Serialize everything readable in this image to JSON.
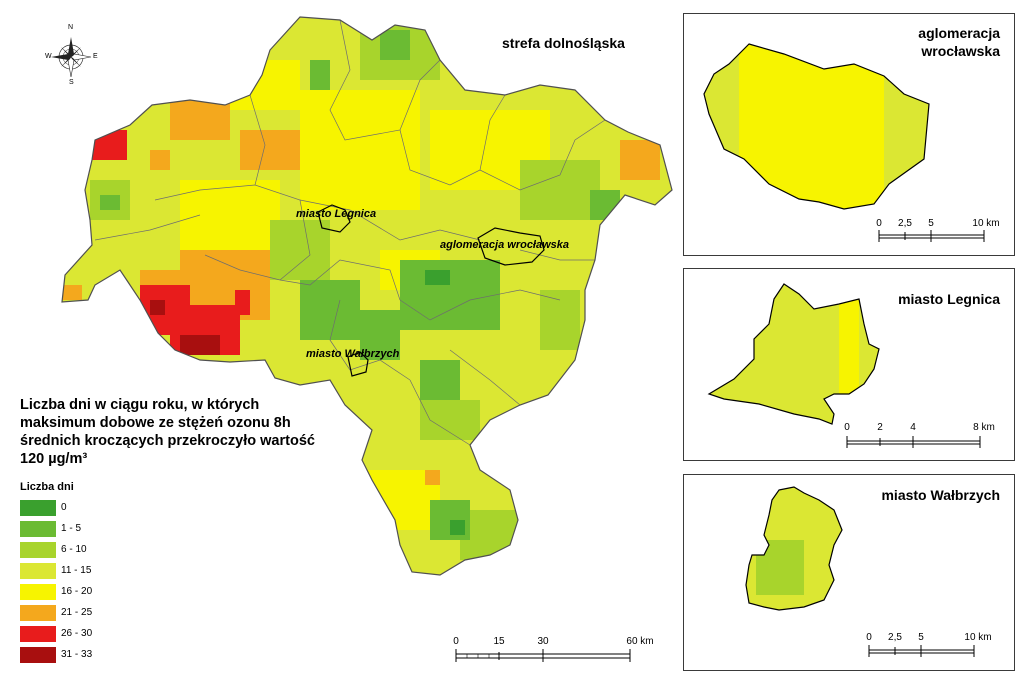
{
  "main_map": {
    "title": "strefa dolnośląska",
    "labels": {
      "legnica": "miasto Legnica",
      "wroclaw": "aglomeracja wrocławska",
      "walbrzych": "miasto Wałbrzych"
    }
  },
  "compass": {
    "n": "N",
    "s": "S",
    "e": "E",
    "w": "W"
  },
  "legend": {
    "title": "Liczba dni w ciągu roku, w których maksimum dobowe ze stężeń ozonu 8h średnich kroczących przekroczyło wartość 120 µg/m³",
    "heading": "Liczba dni",
    "items": [
      {
        "label": "0",
        "color": "#3aa02e"
      },
      {
        "label": "1 - 5",
        "color": "#6bbb33"
      },
      {
        "label": "6 - 10",
        "color": "#a8d42c"
      },
      {
        "label": "11 - 15",
        "color": "#dbe733"
      },
      {
        "label": "16 - 20",
        "color": "#f7f400"
      },
      {
        "label": "21 - 25",
        "color": "#f4a81d"
      },
      {
        "label": "26 - 30",
        "color": "#e81c1c"
      },
      {
        "label": "31 - 33",
        "color": "#a80f0f"
      }
    ]
  },
  "main_scale": {
    "ticks": [
      "0",
      "15",
      "30",
      "60 km"
    ]
  },
  "insets": {
    "wroclaw": {
      "title": "aglomeracja wrocławska",
      "title_line1": "aglomeracja",
      "title_line2": "wrocławska",
      "ticks": [
        "0",
        "2,5",
        "5",
        "10 km"
      ]
    },
    "legnica": {
      "title": "miasto Legnica",
      "ticks": [
        "0",
        "2",
        "4",
        "8 km"
      ]
    },
    "walbrzych": {
      "title": "miasto Wałbrzych",
      "ticks": [
        "0",
        "2,5",
        "5",
        "10 km"
      ]
    }
  }
}
